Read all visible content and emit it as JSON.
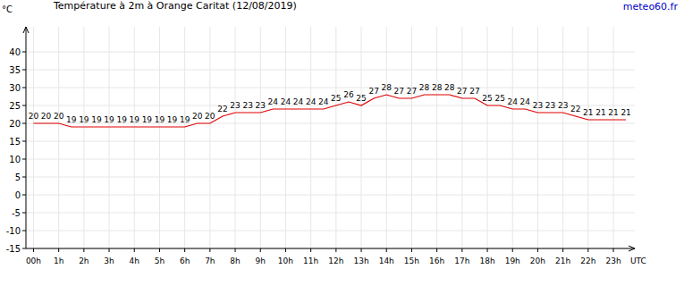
{
  "chart_data": {
    "type": "line",
    "title": "Température à 2m à Orange Caritat (12/08/2019)",
    "source": "meteo60.fr",
    "y_label": "°C",
    "x_label": "UTC",
    "x": [
      0,
      0.5,
      1,
      1.5,
      2,
      2.5,
      3,
      3.5,
      4,
      4.5,
      5,
      5.5,
      6,
      6.5,
      7,
      7.5,
      8,
      8.5,
      9,
      9.5,
      10,
      10.5,
      11,
      11.5,
      12,
      12.5,
      13,
      13.5,
      14,
      14.5,
      15,
      15.5,
      16,
      16.5,
      17,
      17.5,
      18,
      18.5,
      19,
      19.5,
      20,
      20.5,
      21,
      21.5,
      22,
      22.5,
      23,
      23.5
    ],
    "values": [
      20,
      20,
      20,
      19,
      19,
      19,
      19,
      19,
      19,
      19,
      19,
      19,
      19,
      20,
      20,
      22,
      23,
      23,
      23,
      24,
      24,
      24,
      24,
      24,
      25,
      26,
      25,
      27,
      28,
      27,
      27,
      28,
      28,
      28,
      27,
      27,
      25,
      25,
      24,
      24,
      23,
      23,
      23,
      22,
      21,
      21,
      21,
      21
    ],
    "color": "#e00000",
    "data_labels": true,
    "grid": true,
    "xlim": [
      -0.3,
      23.85
    ],
    "xticks": [
      {
        "value": 0,
        "label": "00h"
      },
      {
        "value": 1,
        "label": "1h"
      },
      {
        "value": 2,
        "label": "2h"
      },
      {
        "value": 3,
        "label": "3h"
      },
      {
        "value": 4,
        "label": "4h"
      },
      {
        "value": 5,
        "label": "5h"
      },
      {
        "value": 6,
        "label": "6h"
      },
      {
        "value": 7,
        "label": "7h"
      },
      {
        "value": 8,
        "label": "8h"
      },
      {
        "value": 9,
        "label": "9h"
      },
      {
        "value": 10,
        "label": "10h"
      },
      {
        "value": 11,
        "label": "11h"
      },
      {
        "value": 12,
        "label": "12h"
      },
      {
        "value": 13,
        "label": "13h"
      },
      {
        "value": 14,
        "label": "14h"
      },
      {
        "value": 15,
        "label": "15h"
      },
      {
        "value": 16,
        "label": "16h"
      },
      {
        "value": 17,
        "label": "17h"
      },
      {
        "value": 18,
        "label": "18h"
      },
      {
        "value": 19,
        "label": "19h"
      },
      {
        "value": 20,
        "label": "20h"
      },
      {
        "value": 21,
        "label": "21h"
      },
      {
        "value": 22,
        "label": "22h"
      },
      {
        "value": 23,
        "label": "23h"
      }
    ],
    "ylim": [
      -15,
      47
    ],
    "yticks": [
      -15,
      -10,
      -5,
      0,
      5,
      10,
      15,
      20,
      25,
      30,
      35,
      40
    ]
  }
}
